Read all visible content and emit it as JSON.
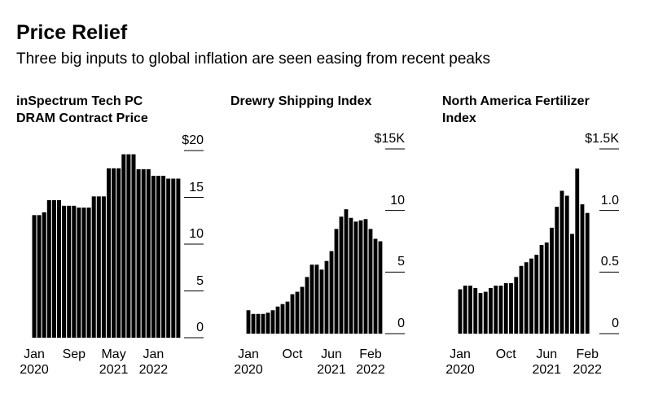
{
  "header": {
    "title": "Price Relief",
    "subtitle": "Three big inputs to global inflation are seen easing from recent peaks"
  },
  "chart_data": [
    {
      "type": "bar",
      "title": "inSpectrum Tech PC DRAM Contract Price",
      "color": "#000000",
      "categories": [
        "Jan 2020",
        null,
        null,
        null,
        null,
        null,
        null,
        null,
        "Sep",
        null,
        null,
        null,
        null,
        null,
        null,
        null,
        "May 2021",
        null,
        null,
        null,
        null,
        null,
        null,
        null,
        "Jan 2022",
        null,
        null,
        null,
        null,
        null
      ],
      "values": [
        13.1,
        13.1,
        13.4,
        14.7,
        14.7,
        14.7,
        14.1,
        14.1,
        14.1,
        13.9,
        13.9,
        13.9,
        15.1,
        15.1,
        15.1,
        18.1,
        18.1,
        18.1,
        19.6,
        19.6,
        19.6,
        18.0,
        18.0,
        18.0,
        17.3,
        17.3,
        17.3,
        17.0,
        17.0,
        17.0
      ],
      "ylim": [
        0,
        20
      ],
      "yticks": [
        0,
        5,
        10,
        15,
        {
          "value": 20,
          "label": "$20"
        }
      ]
    },
    {
      "type": "bar",
      "title": "Drewry Shipping Index",
      "color": "#000000",
      "categories": [
        "Jan 2020",
        null,
        null,
        null,
        null,
        null,
        null,
        null,
        null,
        "Oct",
        null,
        null,
        null,
        null,
        null,
        null,
        null,
        "Jun 2021",
        null,
        null,
        null,
        null,
        null,
        null,
        null,
        "Feb 2022",
        null,
        null
      ],
      "values": [
        1.9,
        1.6,
        1.6,
        1.6,
        1.7,
        1.9,
        2.2,
        2.4,
        2.6,
        3.2,
        3.4,
        3.8,
        4.6,
        5.6,
        5.6,
        5.2,
        5.9,
        6.7,
        8.5,
        9.5,
        10.1,
        9.4,
        9.1,
        9.2,
        9.3,
        8.5,
        7.7,
        7.5
      ],
      "ylim": [
        0,
        15
      ],
      "yticks": [
        0,
        5,
        10,
        {
          "value": 15,
          "label": "$15K"
        }
      ]
    },
    {
      "type": "bar",
      "title": "North America Fertilizer Index",
      "color": "#000000",
      "categories": [
        "Jan 2020",
        null,
        null,
        null,
        null,
        null,
        null,
        null,
        null,
        "Oct",
        null,
        null,
        null,
        null,
        null,
        null,
        null,
        "Jun 2021",
        null,
        null,
        null,
        null,
        null,
        null,
        null,
        "Feb 2022"
      ],
      "values": [
        0.36,
        0.39,
        0.39,
        0.37,
        0.33,
        0.34,
        0.37,
        0.39,
        0.39,
        0.41,
        0.41,
        0.46,
        0.55,
        0.58,
        0.61,
        0.64,
        0.72,
        0.74,
        0.86,
        1.03,
        1.16,
        1.12,
        0.81,
        1.34,
        1.05,
        0.98
      ],
      "ylim": [
        0,
        1.5
      ],
      "yticks": [
        0,
        0.5,
        {
          "value": 1.0,
          "label": "1.0"
        },
        {
          "value": 1.5,
          "label": "$1.5K"
        }
      ]
    }
  ]
}
